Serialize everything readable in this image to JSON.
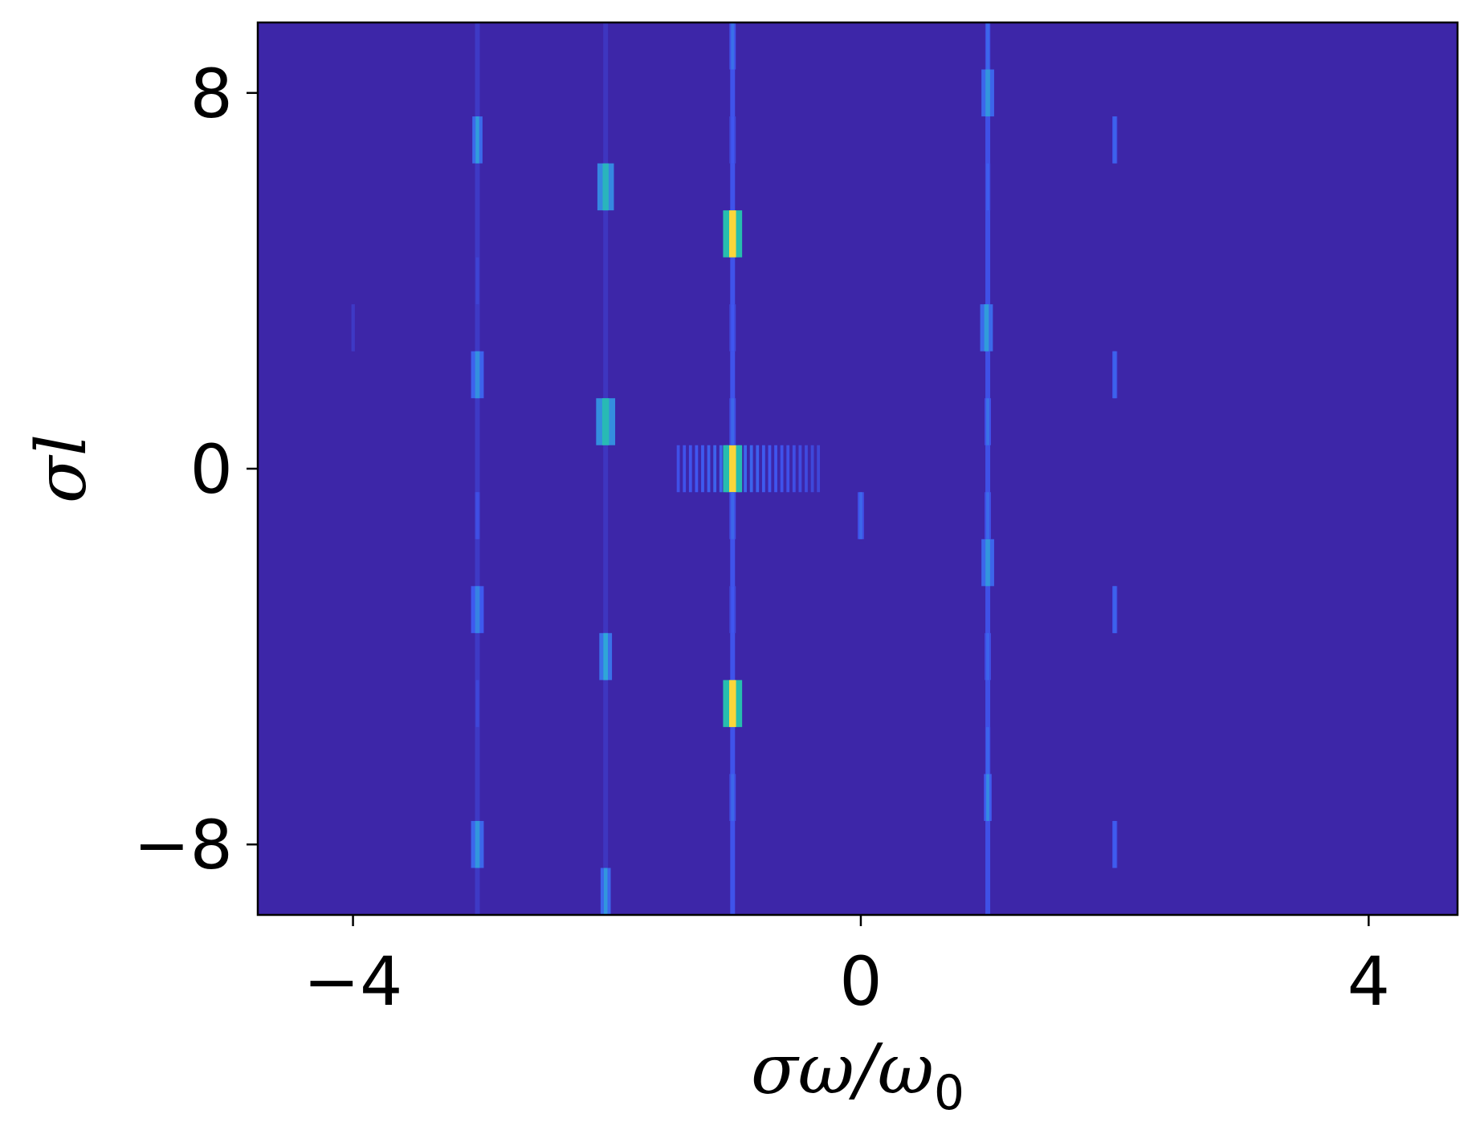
{
  "chart_data": {
    "type": "heatmap",
    "title": "",
    "xlabel": "σω/ω",
    "xlabel_subscript": "0",
    "ylabel": "σl",
    "xlim": [
      -4.75,
      4.7
    ],
    "ylim": [
      -9.5,
      9.5
    ],
    "xticks": [
      {
        "value": -4,
        "label": "−4"
      },
      {
        "value": 0,
        "label": "0"
      },
      {
        "value": 4,
        "label": "4"
      }
    ],
    "yticks": [
      {
        "value": 8,
        "label": "8"
      },
      {
        "value": 0,
        "label": "0"
      },
      {
        "value": -8,
        "label": "−8"
      }
    ],
    "grid": false,
    "colormap": "parula",
    "background_color": "#3D26A8",
    "colors": {
      "low": "#3D26A8",
      "mid_low": "#3F56F0",
      "mid": "#2FA6D8",
      "mid_high": "#24C4A0",
      "high": "#FBD63A"
    },
    "vertical_lines": [
      {
        "x": -1.01,
        "intensity": 0.28
      },
      {
        "x": 1.0,
        "intensity": 0.26
      },
      {
        "x": -3.02,
        "intensity": 0.12
      },
      {
        "x": -2.01,
        "intensity": 0.1
      }
    ],
    "cells": [
      {
        "x": -1.01,
        "l": 9,
        "width": 0.05,
        "intensity": 0.38
      },
      {
        "x": -1.01,
        "l": 5,
        "width": 0.15,
        "intensity": 1.0
      },
      {
        "x": -1.01,
        "l": 0,
        "width": 0.15,
        "intensity": 1.0
      },
      {
        "x": -1.01,
        "l": -5,
        "width": 0.15,
        "intensity": 1.0
      },
      {
        "x": -1.01,
        "l": 7,
        "width": 0.05,
        "intensity": 0.3
      },
      {
        "x": -1.01,
        "l": 3,
        "width": 0.05,
        "intensity": 0.3
      },
      {
        "x": -1.01,
        "l": 1,
        "width": 0.05,
        "intensity": 0.35
      },
      {
        "x": -1.01,
        "l": -1,
        "width": 0.05,
        "intensity": 0.35
      },
      {
        "x": -1.01,
        "l": -3,
        "width": 0.05,
        "intensity": 0.3
      },
      {
        "x": -1.01,
        "l": -7,
        "width": 0.05,
        "intensity": 0.35
      },
      {
        "x": -2.01,
        "l": 6,
        "width": 0.13,
        "intensity": 0.65
      },
      {
        "x": -2.01,
        "l": 1,
        "width": 0.15,
        "intensity": 0.68
      },
      {
        "x": -2.01,
        "l": -4,
        "width": 0.1,
        "intensity": 0.55
      },
      {
        "x": -2.01,
        "l": -9,
        "width": 0.08,
        "intensity": 0.5
      },
      {
        "x": -3.02,
        "l": 7,
        "width": 0.08,
        "intensity": 0.52
      },
      {
        "x": -3.02,
        "l": 2,
        "width": 0.1,
        "intensity": 0.48
      },
      {
        "x": -3.02,
        "l": -3,
        "width": 0.1,
        "intensity": 0.44
      },
      {
        "x": -3.02,
        "l": -8,
        "width": 0.1,
        "intensity": 0.5
      },
      {
        "x": -3.02,
        "l": -1,
        "width": 0.04,
        "intensity": 0.25
      },
      {
        "x": -3.02,
        "l": 4,
        "width": 0.03,
        "intensity": 0.18
      },
      {
        "x": -3.02,
        "l": -5,
        "width": 0.03,
        "intensity": 0.2
      },
      {
        "x": 1.0,
        "l": 8,
        "width": 0.1,
        "intensity": 0.5
      },
      {
        "x": 0.99,
        "l": 3,
        "width": 0.1,
        "intensity": 0.52
      },
      {
        "x": 1.0,
        "l": -2,
        "width": 0.1,
        "intensity": 0.5
      },
      {
        "x": 1.0,
        "l": -7,
        "width": 0.06,
        "intensity": 0.46
      },
      {
        "x": 1.0,
        "l": 9,
        "width": 0.04,
        "intensity": 0.35
      },
      {
        "x": 1.0,
        "l": 6,
        "width": 0.04,
        "intensity": 0.32
      },
      {
        "x": 1.0,
        "l": 1,
        "width": 0.05,
        "intensity": 0.38
      },
      {
        "x": 1.0,
        "l": -1,
        "width": 0.05,
        "intensity": 0.36
      },
      {
        "x": 1.0,
        "l": -4,
        "width": 0.05,
        "intensity": 0.34
      },
      {
        "x": 1.0,
        "l": -6,
        "width": 0.04,
        "intensity": 0.34
      },
      {
        "x": 2.0,
        "l": 7,
        "width": 0.04,
        "intensity": 0.34
      },
      {
        "x": 2.0,
        "l": 2,
        "width": 0.04,
        "intensity": 0.34
      },
      {
        "x": 2.0,
        "l": -3,
        "width": 0.04,
        "intensity": 0.34
      },
      {
        "x": 2.0,
        "l": -8,
        "width": 0.04,
        "intensity": 0.32
      },
      {
        "x": 0.0,
        "l": -1,
        "width": 0.05,
        "intensity": 0.35
      },
      {
        "x": -4.0,
        "l": 3,
        "width": 0.02,
        "intensity": 0.12
      }
    ],
    "fringe": {
      "l": 0,
      "x_range": [
        -1.45,
        -0.33
      ],
      "period": 0.048,
      "intensity": 0.38
    }
  }
}
